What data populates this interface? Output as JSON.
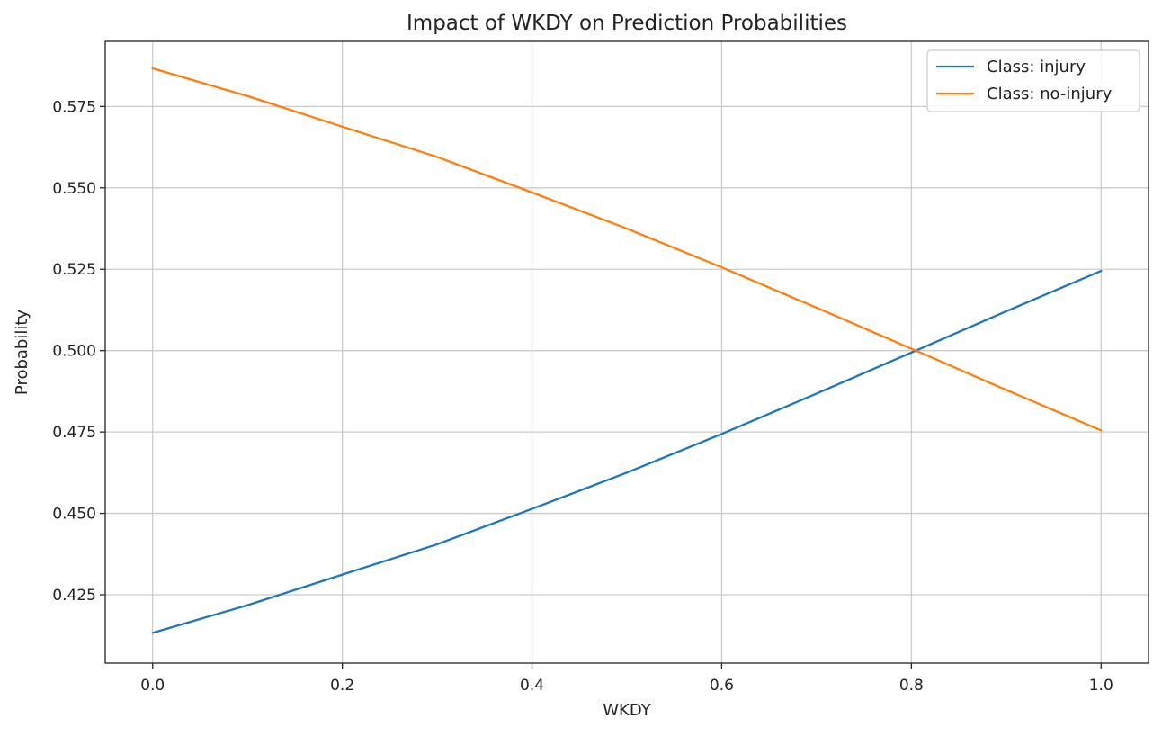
{
  "chart_data": {
    "type": "line",
    "title": "Impact of WKDY on Prediction Probabilities",
    "xlabel": "WKDY",
    "ylabel": "Probability",
    "xlim": [
      -0.05,
      1.05
    ],
    "ylim": [
      0.404,
      0.595
    ],
    "xticks": [
      0.0,
      0.2,
      0.4,
      0.6,
      0.8,
      1.0
    ],
    "xtick_labels": [
      "0.0",
      "0.2",
      "0.4",
      "0.6",
      "0.8",
      "1.0"
    ],
    "yticks": [
      0.425,
      0.45,
      0.475,
      0.5,
      0.525,
      0.55,
      0.575
    ],
    "ytick_labels": [
      "0.425",
      "0.450",
      "0.475",
      "0.500",
      "0.525",
      "0.550",
      "0.575"
    ],
    "grid": true,
    "legend_position": "top-right",
    "x": [
      0.0,
      0.1,
      0.2,
      0.3,
      0.4,
      0.5,
      0.6,
      0.7,
      0.8,
      0.9,
      1.0
    ],
    "series": [
      {
        "name": "Class: injury",
        "color": "#1f77b4",
        "values": [
          0.4133,
          0.4218,
          0.4312,
          0.4405,
          0.4514,
          0.4625,
          0.4744,
          0.4868,
          0.4994,
          0.5121,
          0.5245
        ]
      },
      {
        "name": "Class: no-injury",
        "color": "#ff7f0e",
        "values": [
          0.5867,
          0.5782,
          0.5688,
          0.5595,
          0.5486,
          0.5375,
          0.5256,
          0.5132,
          0.5006,
          0.4879,
          0.4755
        ]
      }
    ]
  }
}
